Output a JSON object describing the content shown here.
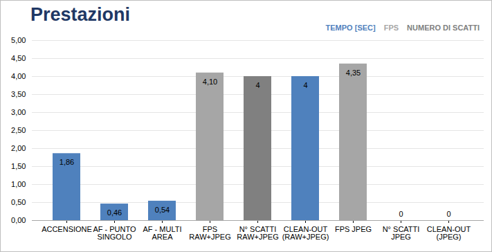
{
  "chart_data": {
    "type": "bar",
    "title": "Prestazioni",
    "categories": [
      "ACCENSIONE",
      "AF - PUNTO\nSINGOLO",
      "AF - MULTI\nAREA",
      "FPS\nRAW+JPEG",
      "N° SCATTI\nRAW+JPEG",
      "CLEAN-OUT\n(RAW+JPEG)",
      "FPS JPEG",
      "N° SCATTI\nJPEG",
      "CLEAN-OUT\n(JPEG)"
    ],
    "series": [
      {
        "name": "TEMPO [SEC]",
        "color": "#4f81bd",
        "values": [
          1.86,
          0.46,
          0.54,
          null,
          null,
          4,
          null,
          null,
          0
        ],
        "value_labels": [
          "1,86",
          "0,46",
          "0,54",
          null,
          null,
          "4",
          null,
          null,
          "0"
        ]
      },
      {
        "name": "FPS",
        "color": "#a6a6a6",
        "values": [
          null,
          null,
          null,
          4.1,
          null,
          null,
          4.35,
          null,
          null
        ],
        "value_labels": [
          null,
          null,
          null,
          "4,10",
          null,
          null,
          "4,35",
          null,
          null
        ]
      },
      {
        "name": "NUMERO DI SCATTI",
        "color": "#808080",
        "values": [
          null,
          null,
          null,
          null,
          4,
          null,
          null,
          0,
          null
        ],
        "value_labels": [
          null,
          null,
          null,
          null,
          "4",
          null,
          null,
          "0",
          null
        ]
      }
    ],
    "ylim": [
      0,
      5
    ],
    "yticks": [
      {
        "value": 0,
        "label": "0,00"
      },
      {
        "value": 0.5,
        "label": "0,50"
      },
      {
        "value": 1,
        "label": "1,00"
      },
      {
        "value": 1.5,
        "label": "1,50"
      },
      {
        "value": 2,
        "label": "2,00"
      },
      {
        "value": 2.5,
        "label": "2,50"
      },
      {
        "value": 3,
        "label": "3,00"
      },
      {
        "value": 3.5,
        "label": "3,50"
      },
      {
        "value": 4,
        "label": "4,00"
      },
      {
        "value": 4.5,
        "label": "4,50"
      },
      {
        "value": 5,
        "label": "5,00"
      }
    ],
    "grid": true,
    "legend": "top-right",
    "data_labels": true
  }
}
